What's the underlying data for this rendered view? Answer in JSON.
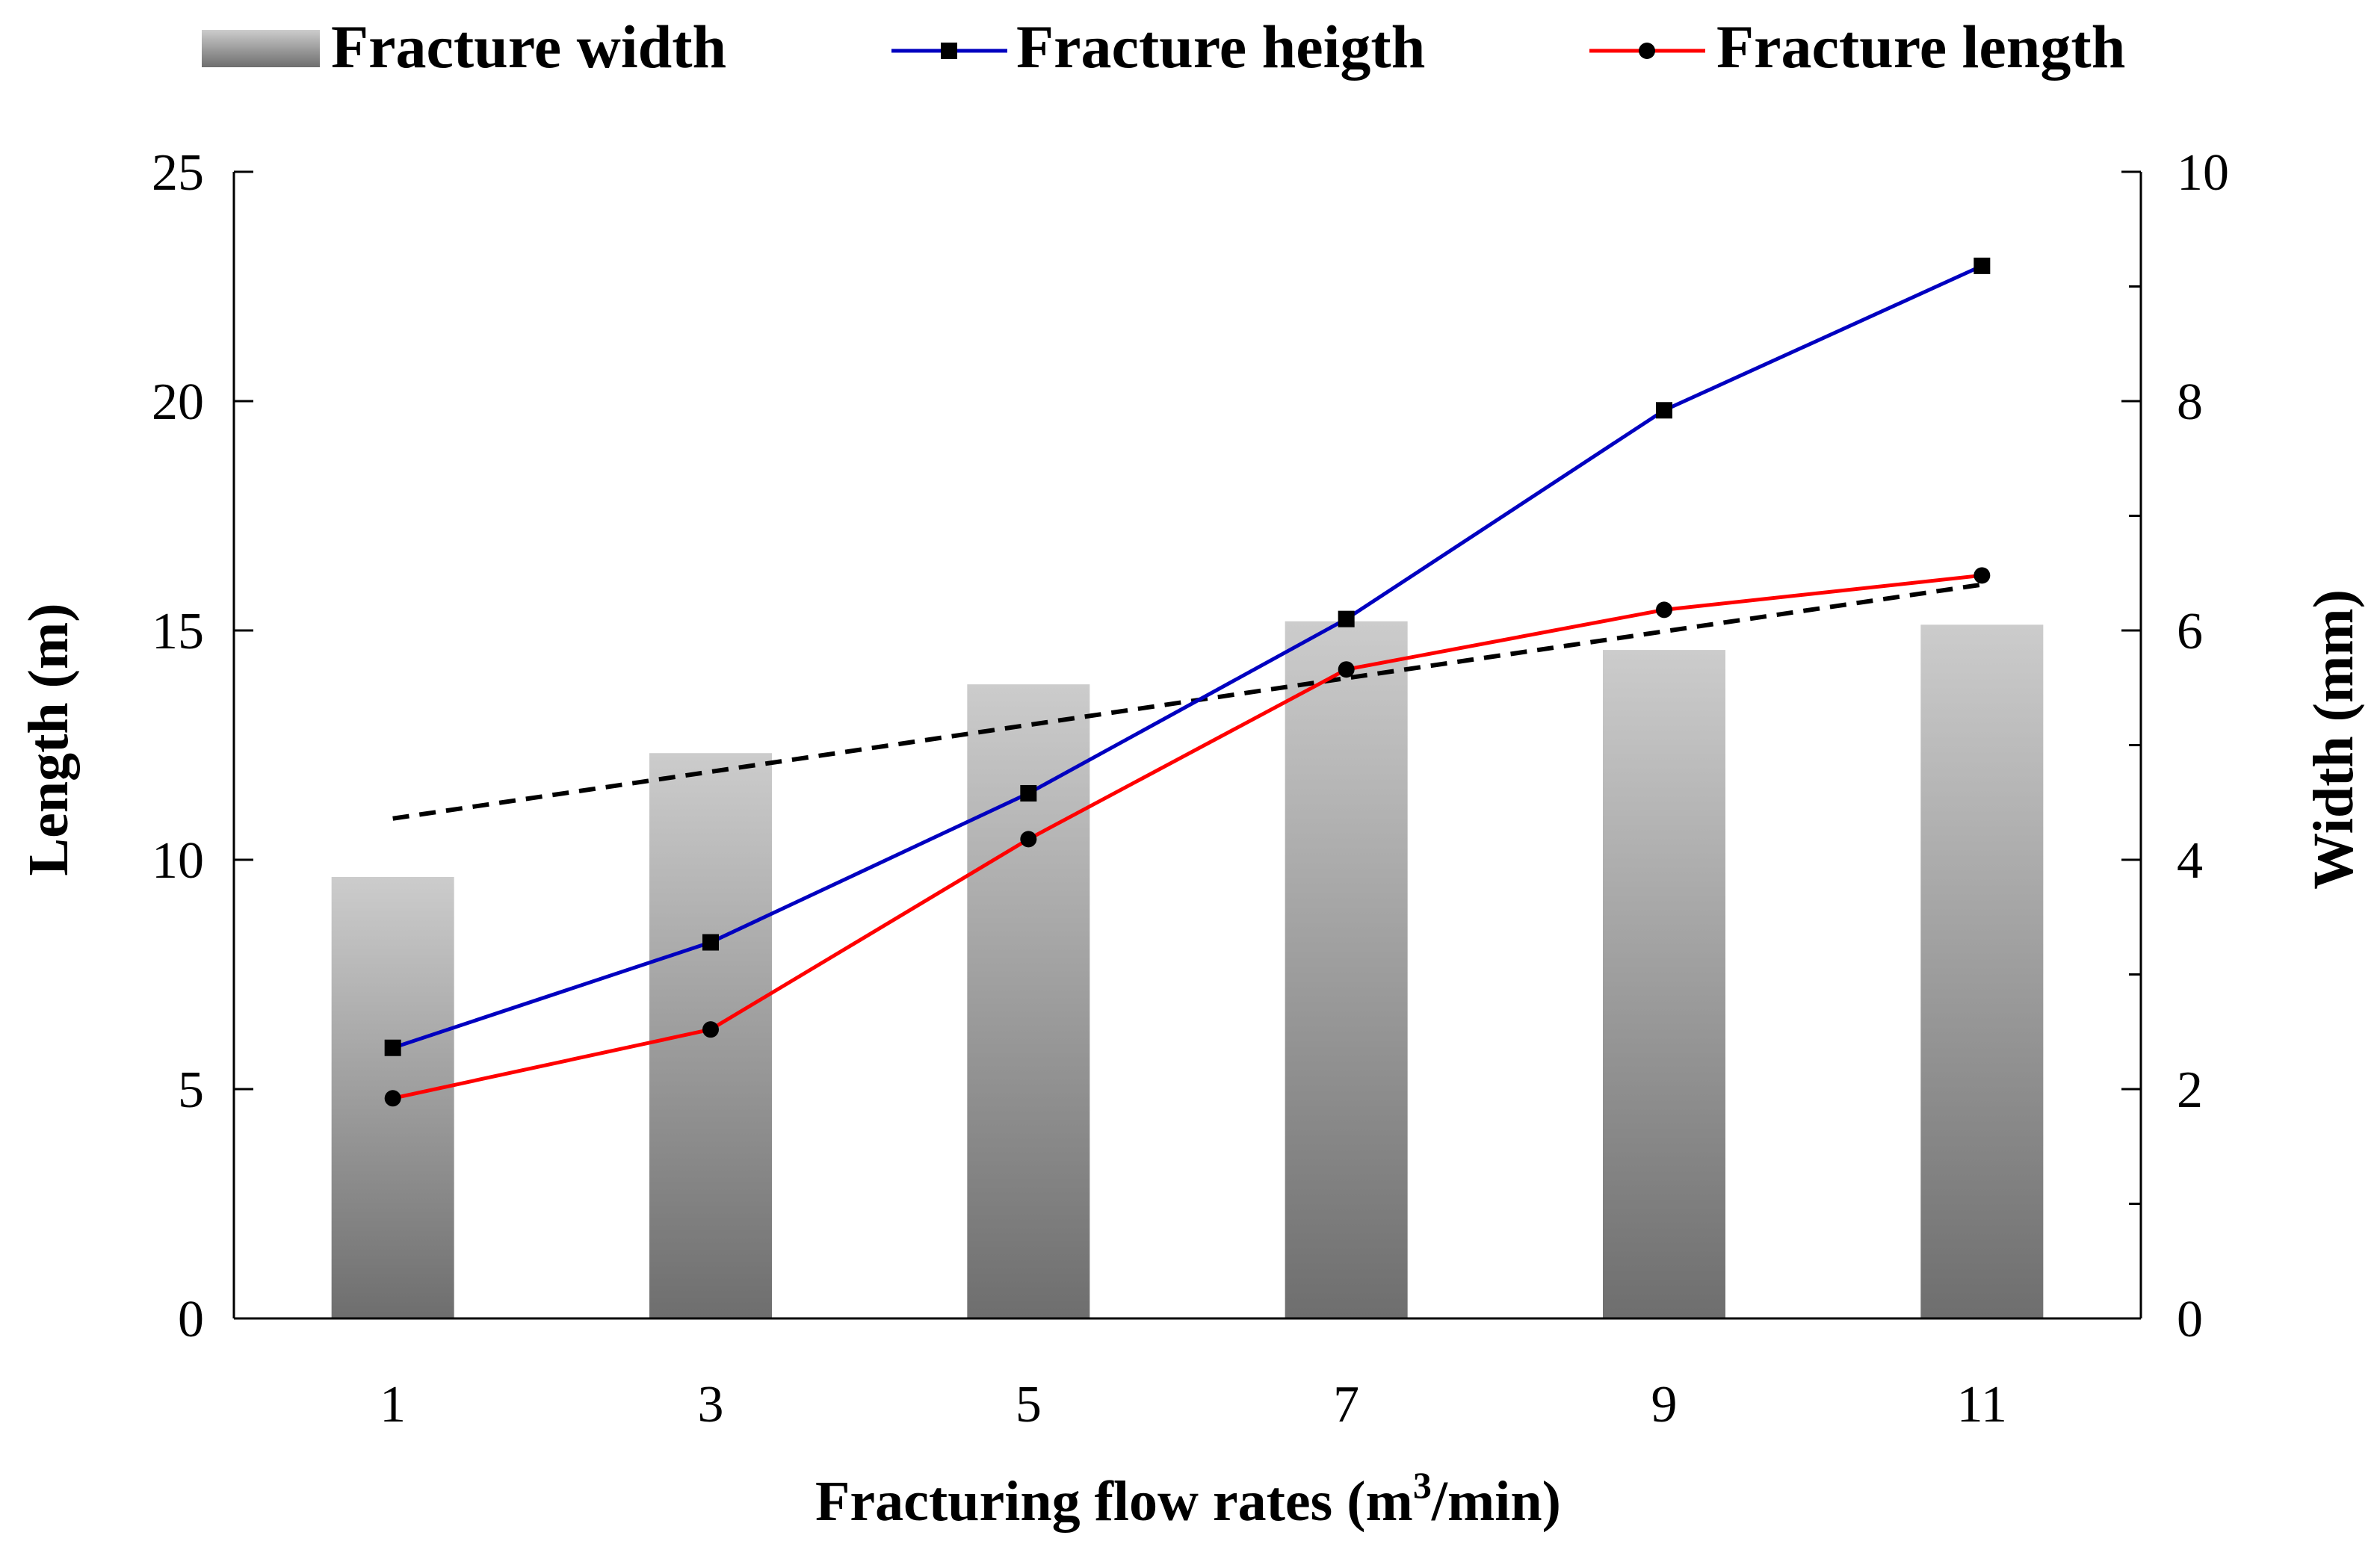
{
  "chart_data": {
    "type": "bar+line",
    "categories": [
      "1",
      "3",
      "5",
      "7",
      "9",
      "11"
    ],
    "bar_series": {
      "name": "Fracture width",
      "axis": "right",
      "unit": "mm",
      "values": [
        3.85,
        4.93,
        5.53,
        6.08,
        5.83,
        6.05
      ],
      "color_top": "#cccccc",
      "color_bottom": "#6e6e6e"
    },
    "line_series": [
      {
        "name": "Fracture heigth",
        "axis": "left",
        "unit": "m",
        "marker": "square",
        "color": "#0000c0",
        "values": [
          5.9,
          8.2,
          11.45,
          15.25,
          19.8,
          22.95
        ]
      },
      {
        "name": "Fracture length",
        "axis": "left",
        "unit": "m",
        "marker": "circle",
        "color": "#ff0000",
        "values": [
          4.8,
          6.3,
          10.45,
          14.15,
          15.45,
          16.2
        ]
      }
    ],
    "trendline": {
      "of": "Fracture width",
      "style": "dashed",
      "color": "#000000",
      "values": [
        4.36,
        6.4
      ]
    },
    "left_axis": {
      "label": "Length (m)",
      "min": 0,
      "max": 25,
      "ticks": [
        "0",
        "5",
        "10",
        "15",
        "20",
        "25"
      ]
    },
    "right_axis": {
      "label": "Width (mm)",
      "min": 0,
      "max": 10,
      "ticks": [
        "0",
        "2",
        "4",
        "6",
        "8",
        "10"
      ]
    },
    "xlabel": {
      "main": "Fracturing flow rates (m",
      "sup": "3",
      "end": "/min)"
    },
    "legend": {
      "position": "top",
      "entries": [
        "Fracture width",
        "Fracture heigth",
        "Fracture length"
      ]
    }
  }
}
